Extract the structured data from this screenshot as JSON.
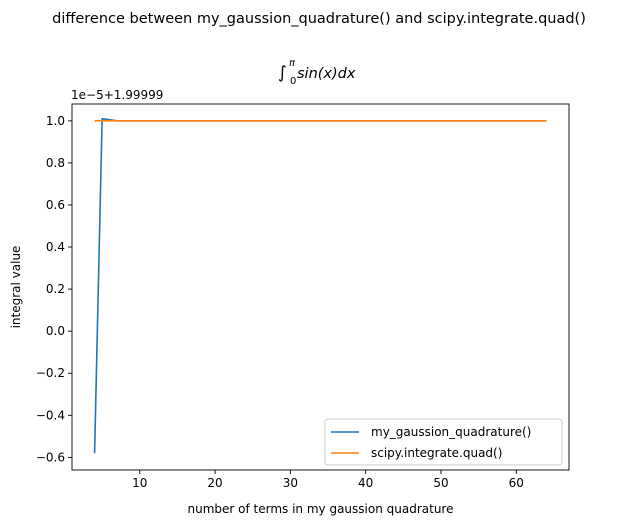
{
  "figure": {
    "suptitle": "difference between my_gaussion_quadrature() and scipy.integrate.quad()"
  },
  "chart_data": {
    "type": "line",
    "title_parts": {
      "integral": "∫",
      "upper": "π",
      "lower": "0",
      "integrand": "sin(x)dx"
    },
    "xlabel": "number of terms in my gaussion quadrature",
    "ylabel": "integral value",
    "offset_text": "1e−5+1.99999",
    "xlim": [
      1,
      67
    ],
    "ylim": [
      -0.66,
      1.08
    ],
    "x_ticks": [
      10,
      20,
      30,
      40,
      50,
      60
    ],
    "y_ticks": [
      -0.6,
      -0.4,
      -0.2,
      0.0,
      0.2,
      0.4,
      0.6,
      0.8,
      1.0
    ],
    "x_tick_labels": [
      "10",
      "20",
      "30",
      "40",
      "50",
      "60"
    ],
    "y_tick_labels": [
      "−0.6",
      "−0.4",
      "−0.2",
      "0.0",
      "0.2",
      "0.4",
      "0.6",
      "0.8",
      "1.0"
    ],
    "grid": false,
    "legend_position": "lower right",
    "series": [
      {
        "name": "my_gaussion_quadrature()",
        "color": "#1f77b4",
        "x": [
          4,
          5,
          6,
          7,
          8,
          64
        ],
        "y": [
          -0.58,
          1.01,
          1.005,
          1.0,
          1.0,
          1.0
        ]
      },
      {
        "name": "scipy.integrate.quad()",
        "color": "#ff7f0e",
        "x": [
          4,
          64
        ],
        "y": [
          1.0,
          1.0
        ]
      }
    ]
  }
}
